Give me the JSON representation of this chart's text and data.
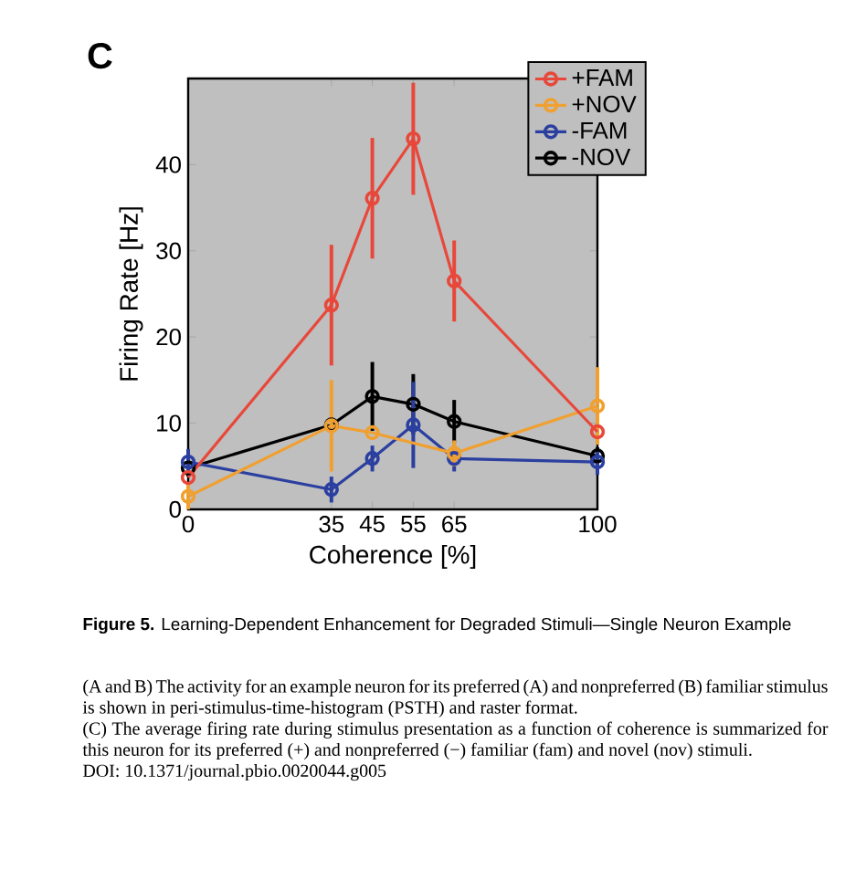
{
  "chart_data": {
    "type": "line",
    "xlabel": "Coherence [%]",
    "ylabel": "Firing Rate [Hz]",
    "x": [
      0,
      35,
      45,
      55,
      65,
      100
    ],
    "series": [
      {
        "name": "+FAM",
        "color": "#e8473a",
        "values": [
          3.7,
          23.7,
          36.1,
          43,
          26.5,
          9
        ],
        "errors": [
          null,
          7,
          7,
          6.5,
          4.7,
          null
        ]
      },
      {
        "name": "+NOV",
        "color": "#f0a030",
        "values": [
          1.5,
          9.7,
          8.9,
          null,
          6.5,
          12
        ],
        "errors": [
          1.5,
          5.3,
          null,
          null,
          1.5,
          4.5
        ]
      },
      {
        "name": "-FAM",
        "color": "#2a3fa0",
        "values": [
          5.5,
          2.3,
          5.9,
          9.8,
          5.9,
          5.5
        ],
        "errors": [
          1.5,
          1.5,
          1.5,
          5,
          1.5,
          1.5
        ]
      },
      {
        "name": "-NOV",
        "color": "#000000",
        "values": [
          4.8,
          9.8,
          13.1,
          12.2,
          10.2,
          6.2
        ],
        "errors": [
          1,
          null,
          4,
          3.5,
          2.5,
          1
        ]
      }
    ],
    "xlim": [
      0,
      100
    ],
    "ylim": [
      0,
      50
    ],
    "xticks": [
      0,
      35,
      45,
      55,
      65,
      100
    ],
    "yticks": [
      0,
      10,
      20,
      30,
      40
    ],
    "legend": "top right",
    "marker": "circle",
    "line_style": "solid",
    "annotations": [
      "C",
      "**Figure 5.** Learning-Dependent Enhancement for Degraded Stimuli—Single Neuron Example",
      "(A and B) The activity for an example neuron for its preferred (A) and nonpreferred (B) familiar stimulus is shown in peri-stimulus-time-histogram (PSTH) and raster format.",
      "(C) The average firing rate during stimulus presentation as a function of coherence is summarized for this neuron for its preferred (+) and nonpreferred (−) familiar (fam) and novel (nov) stimuli.",
      "DOI: 10.1371/journal.pbio.0020044.g005"
    ]
  }
}
